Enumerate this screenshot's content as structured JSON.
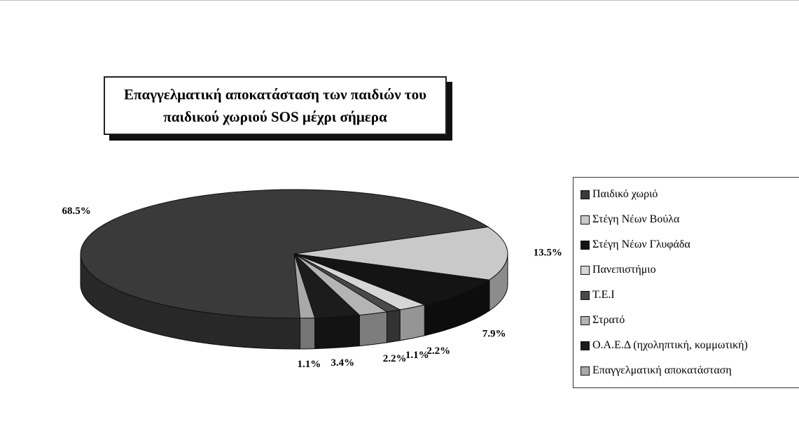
{
  "chart_data": {
    "type": "pie",
    "title": "Επαγγελματική αποκατάσταση των παιδιών του παιδικού χωριού SOS μέχρι σήμερα",
    "categories": [
      "Παιδικό χωριό",
      "Στέγη Νέων Βούλα",
      "Στέγη Νέων Γλυφάδα",
      "Πανεπιστήμιο",
      "Τ.Ε.Ι",
      "Στρατό",
      "Ο.Α.Ε.Δ (ηχοληπτική, κομμωτική)",
      "Επαγγελματική αποκατάσταση"
    ],
    "values": [
      68.5,
      13.5,
      7.9,
      2.2,
      1.1,
      2.2,
      3.4,
      1.1
    ],
    "value_labels": [
      "68.5%",
      "13.5%",
      "7.9%",
      "2.2%",
      "1.1%",
      "2.2%",
      "3.4%",
      "1.1%"
    ],
    "colors": [
      "#3a3a3a",
      "#c9c9c9",
      "#141414",
      "#d6d6d6",
      "#4a4a4a",
      "#b4b4b4",
      "#1c1c1c",
      "#a8a8a8"
    ],
    "legend": "right"
  }
}
